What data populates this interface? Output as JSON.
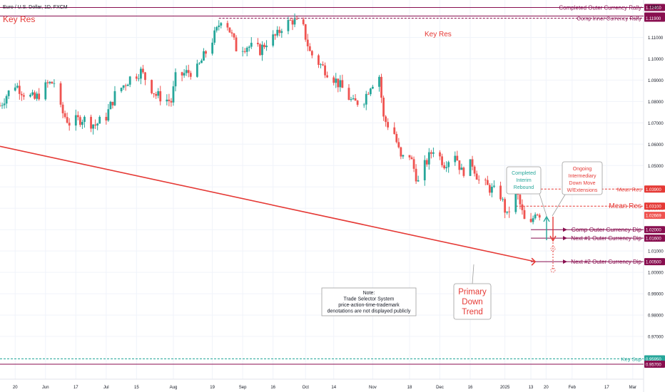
{
  "symbol_title": "Euro / U.S. Dollar, 1D, FXCM",
  "currency": "USD",
  "colors": {
    "up": "#26a69a",
    "down": "#ef5350",
    "maroon": "#880e4f",
    "red": "#e53935",
    "green": "#26a69a",
    "grid": "#f0f3fa",
    "axis_text": "#131722",
    "current": "#ef5350"
  },
  "chart_data": {
    "type": "candlestick",
    "title": "Euro / U.S. Dollar, 1D, FXCM",
    "y_unit": "USD",
    "ylim": [
      0.95,
      1.1275
    ],
    "x_range": [
      "2024-05-13",
      "2025-03-06"
    ],
    "x_ticks": [
      {
        "date": "2024-05-20",
        "label": "20"
      },
      {
        "date": "2024-06-03",
        "label": "Jun"
      },
      {
        "date": "2024-06-17",
        "label": "17"
      },
      {
        "date": "2024-07-01",
        "label": "Jul"
      },
      {
        "date": "2024-07-15",
        "label": "15"
      },
      {
        "date": "2024-08-01",
        "label": "Aug"
      },
      {
        "date": "2024-08-19",
        "label": "19"
      },
      {
        "date": "2024-09-02",
        "label": "Sep"
      },
      {
        "date": "2024-09-16",
        "label": "16"
      },
      {
        "date": "2024-10-01",
        "label": "Oct"
      },
      {
        "date": "2024-10-14",
        "label": "14"
      },
      {
        "date": "2024-11-01",
        "label": "Nov"
      },
      {
        "date": "2024-11-18",
        "label": "18"
      },
      {
        "date": "2024-12-02",
        "label": "Dec"
      },
      {
        "date": "2024-12-16",
        "label": "16"
      },
      {
        "date": "2025-01-01",
        "label": "2025"
      },
      {
        "date": "2025-01-13",
        "label": "13"
      },
      {
        "date": "2025-01-20",
        "label": "20"
      },
      {
        "date": "2025-02-01",
        "label": "Feb"
      },
      {
        "date": "2025-02-17",
        "label": "17"
      },
      {
        "date": "2025-03-01",
        "label": "Mar"
      }
    ],
    "y_ticks": [
      "0.97000",
      "0.98000",
      "0.99000",
      "1.00000",
      "1.01000",
      "1.02000",
      "1.03000",
      "1.04000",
      "1.05000",
      "1.06000",
      "1.07000",
      "1.08000",
      "1.09000",
      "1.10000",
      "1.11000"
    ],
    "price_path": [
      {
        "date": "2024-05-13",
        "close": 1.078
      },
      {
        "date": "2024-05-16",
        "close": 1.083
      },
      {
        "date": "2024-05-20",
        "close": 1.088
      },
      {
        "date": "2024-05-24",
        "close": 1.084
      },
      {
        "date": "2024-05-29",
        "close": 1.081
      },
      {
        "date": "2024-06-04",
        "close": 1.088
      },
      {
        "date": "2024-06-07",
        "close": 1.089
      },
      {
        "date": "2024-06-10",
        "close": 1.076
      },
      {
        "date": "2024-06-14",
        "close": 1.07
      },
      {
        "date": "2024-06-20",
        "close": 1.072
      },
      {
        "date": "2024-06-26",
        "close": 1.069
      },
      {
        "date": "2024-07-01",
        "close": 1.073
      },
      {
        "date": "2024-07-05",
        "close": 1.083
      },
      {
        "date": "2024-07-12",
        "close": 1.091
      },
      {
        "date": "2024-07-17",
        "close": 1.094
      },
      {
        "date": "2024-07-24",
        "close": 1.083
      },
      {
        "date": "2024-07-31",
        "close": 1.08
      },
      {
        "date": "2024-08-02",
        "close": 1.091
      },
      {
        "date": "2024-08-06",
        "close": 1.093
      },
      {
        "date": "2024-08-12",
        "close": 1.095
      },
      {
        "date": "2024-08-16",
        "close": 1.103
      },
      {
        "date": "2024-08-21",
        "close": 1.113
      },
      {
        "date": "2024-08-23",
        "close": 1.119
      },
      {
        "date": "2024-08-26",
        "close": 1.116
      },
      {
        "date": "2024-08-30",
        "close": 1.105
      },
      {
        "date": "2024-09-04",
        "close": 1.106
      },
      {
        "date": "2024-09-10",
        "close": 1.104
      },
      {
        "date": "2024-09-13",
        "close": 1.108
      },
      {
        "date": "2024-09-18",
        "close": 1.111
      },
      {
        "date": "2024-09-20",
        "close": 1.115
      },
      {
        "date": "2024-09-25",
        "close": 1.118
      },
      {
        "date": "2024-09-30",
        "close": 1.114
      },
      {
        "date": "2024-10-03",
        "close": 1.103
      },
      {
        "date": "2024-10-08",
        "close": 1.097
      },
      {
        "date": "2024-10-14",
        "close": 1.091
      },
      {
        "date": "2024-10-18",
        "close": 1.086
      },
      {
        "date": "2024-10-23",
        "close": 1.079
      },
      {
        "date": "2024-10-28",
        "close": 1.081
      },
      {
        "date": "2024-10-31",
        "close": 1.088
      },
      {
        "date": "2024-11-04",
        "close": 1.092
      },
      {
        "date": "2024-11-06",
        "close": 1.072
      },
      {
        "date": "2024-11-11",
        "close": 1.065
      },
      {
        "date": "2024-11-14",
        "close": 1.053
      },
      {
        "date": "2024-11-18",
        "close": 1.055
      },
      {
        "date": "2024-11-22",
        "close": 1.042
      },
      {
        "date": "2024-11-25",
        "close": 1.05
      },
      {
        "date": "2024-11-29",
        "close": 1.058
      },
      {
        "date": "2024-12-04",
        "close": 1.051
      },
      {
        "date": "2024-12-09",
        "close": 1.056
      },
      {
        "date": "2024-12-12",
        "close": 1.047
      },
      {
        "date": "2024-12-17",
        "close": 1.051
      },
      {
        "date": "2024-12-20",
        "close": 1.043
      },
      {
        "date": "2024-12-24",
        "close": 1.04
      },
      {
        "date": "2024-12-30",
        "close": 1.036
      },
      {
        "date": "2025-01-02",
        "close": 1.026
      },
      {
        "date": "2025-01-06",
        "close": 1.039
      },
      {
        "date": "2025-01-10",
        "close": 1.024
      },
      {
        "date": "2025-01-13",
        "close": 1.022
      },
      {
        "date": "2025-01-15",
        "close": 1.029
      },
      {
        "date": "2025-01-17",
        "close": 1.0275
      }
    ],
    "horizontal_levels": [
      {
        "label": "Completed Outer Currency Rally",
        "value": 1.124,
        "style": "solid"
      },
      {
        "label": "",
        "value": 1.12,
        "style": "solid"
      },
      {
        "label": "Comp Inner Currency Rally",
        "value": 1.119,
        "style": "dashed"
      },
      {
        "label": "Mean Res",
        "value": 1.039,
        "style": "dashed"
      },
      {
        "label": "Mean Res",
        "value": 1.031,
        "style": "dashed"
      },
      {
        "label": "Comp Outer Currency Dip",
        "value": 1.02,
        "style": "solid"
      },
      {
        "label": "Next #1 Outer Currency Dip",
        "value": 1.016,
        "style": "solid"
      },
      {
        "label": "Next #2 Outer Currency Dip",
        "value": 1.005,
        "style": "solid"
      },
      {
        "label": "Key Sup",
        "value": 0.9595,
        "style": "dashed"
      },
      {
        "label": "",
        "value": 0.957,
        "style": "solid"
      }
    ],
    "price_labels": [
      "1.12400",
      "1.12000",
      "1.11900",
      "1.03900",
      "1.03100",
      "1.02669",
      "1.02000",
      "1.01600",
      "1.00500",
      "0.95950",
      "0.95700"
    ],
    "current_price": 1.02669,
    "trend_line": {
      "start": {
        "date": "2024-05-13",
        "value": 1.059
      },
      "end": {
        "date": "2025-01-15",
        "value": 1.005
      }
    }
  },
  "annotations": {
    "key_res_top": "Key Res",
    "key_res_inner": "Key Res",
    "completed_interim_rebound": [
      "Completed",
      "Interim",
      "Rebound"
    ],
    "ongoing_move": [
      "Ongoing",
      "Intermediary",
      "Down Move",
      "W/Extensions"
    ],
    "primary_down_trend": [
      "Primary",
      "Down",
      "Trend"
    ],
    "note": [
      "Note:",
      "Trade Selector System",
      "price-action-time-trademark",
      "denotations are not displayed publicly"
    ]
  }
}
